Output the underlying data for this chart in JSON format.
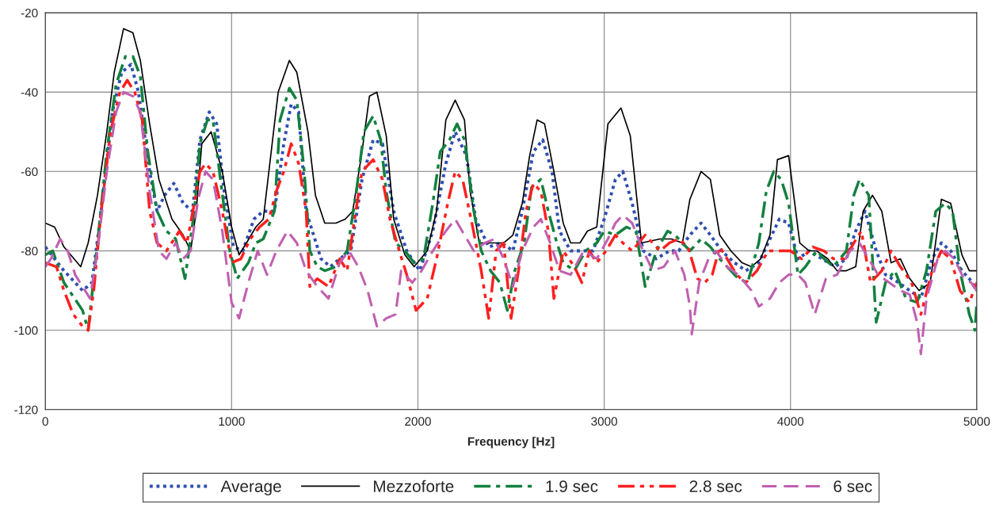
{
  "chart_data": {
    "type": "line",
    "xlabel": "Frequency [Hz]",
    "xlim": [
      0,
      5000
    ],
    "xticks": [
      0,
      1000,
      2000,
      3000,
      4000,
      5000
    ],
    "ylim": [
      -120,
      -20
    ],
    "yticks": [
      -120,
      -100,
      -80,
      -60,
      -40,
      -20
    ],
    "grid": true,
    "legend": "bottom",
    "marker": "none",
    "series": [
      {
        "name": "Average",
        "color": "#2e4eb0",
        "line_style": "dotted",
        "x": [
          0,
          100,
          200,
          250,
          300,
          360,
          410,
          460,
          500,
          560,
          600,
          640,
          690,
          740,
          790,
          830,
          880,
          920,
          960,
          1010,
          1060,
          1120,
          1170,
          1230,
          1280,
          1320,
          1360,
          1400,
          1480,
          1530,
          1580,
          1640,
          1700,
          1760,
          1810,
          1870,
          1940,
          2010,
          2080,
          2150,
          2200,
          2260,
          2310,
          2380,
          2450,
          2510,
          2560,
          2620,
          2670,
          2720,
          2760,
          2820,
          2880,
          2940,
          3000,
          3060,
          3100,
          3150,
          3210,
          3280,
          3350,
          3400,
          3460,
          3520,
          3570,
          3630,
          3700,
          3760,
          3830,
          3880,
          3940,
          3990,
          4040,
          4100,
          4170,
          4240,
          4300,
          4350,
          4400,
          4460,
          4510,
          4580,
          4640,
          4700,
          4760,
          4810,
          4860,
          4920,
          4960,
          5000
        ],
        "values": [
          -79,
          -85,
          -90,
          -88,
          -70,
          -45,
          -35,
          -33,
          -40,
          -60,
          -70,
          -66,
          -63,
          -68,
          -70,
          -52,
          -45,
          -48,
          -65,
          -79,
          -80,
          -72,
          -70,
          -70,
          -53,
          -43,
          -45,
          -70,
          -82,
          -84,
          -82,
          -80,
          -62,
          -52,
          -53,
          -70,
          -80,
          -85,
          -75,
          -58,
          -50,
          -56,
          -72,
          -79,
          -78,
          -80,
          -70,
          -55,
          -52,
          -60,
          -75,
          -80,
          -80,
          -80,
          -72,
          -62,
          -60,
          -68,
          -80,
          -82,
          -80,
          -80,
          -76,
          -73,
          -76,
          -80,
          -83,
          -85,
          -83,
          -78,
          -72,
          -73,
          -82,
          -80,
          -82,
          -84,
          -82,
          -75,
          -70,
          -80,
          -86,
          -88,
          -90,
          -92,
          -82,
          -78,
          -80,
          -85,
          -87,
          -90
        ]
      },
      {
        "name": "Mezzoforte",
        "color": "#000000",
        "line_style": "solid",
        "x": [
          0,
          50,
          100,
          190,
          230,
          280,
          330,
          370,
          420,
          470,
          510,
          560,
          610,
          680,
          740,
          780,
          810,
          840,
          890,
          950,
          1000,
          1040,
          1080,
          1130,
          1170,
          1250,
          1310,
          1350,
          1410,
          1450,
          1500,
          1560,
          1610,
          1650,
          1700,
          1740,
          1780,
          1830,
          1870,
          1930,
          1980,
          2050,
          2100,
          2150,
          2200,
          2250,
          2280,
          2330,
          2400,
          2460,
          2510,
          2560,
          2600,
          2640,
          2680,
          2730,
          2780,
          2820,
          2870,
          2910,
          2960,
          3020,
          3090,
          3140,
          3200,
          3300,
          3360,
          3420,
          3460,
          3520,
          3570,
          3620,
          3680,
          3740,
          3790,
          3840,
          3890,
          3930,
          3990,
          4050,
          4100,
          4140,
          4200,
          4250,
          4300,
          4350,
          4390,
          4440,
          4490,
          4540,
          4590,
          4640,
          4690,
          4750,
          4810,
          4860,
          4920,
          4960,
          5000
        ],
        "values": [
          -73,
          -74,
          -79,
          -84,
          -78,
          -66,
          -50,
          -35,
          -24,
          -25,
          -32,
          -48,
          -62,
          -72,
          -76,
          -80,
          -70,
          -53,
          -50,
          -60,
          -74,
          -81,
          -78,
          -74,
          -72,
          -40,
          -32,
          -35,
          -50,
          -66,
          -73,
          -73,
          -72,
          -70,
          -55,
          -41,
          -40,
          -51,
          -72,
          -81,
          -84,
          -80,
          -70,
          -47,
          -42,
          -47,
          -65,
          -78,
          -78,
          -78,
          -76,
          -68,
          -56,
          -47,
          -48,
          -60,
          -73,
          -78,
          -78,
          -75,
          -74,
          -48,
          -44,
          -51,
          -78,
          -77,
          -77,
          -78,
          -67,
          -60,
          -62,
          -76,
          -80,
          -83,
          -84,
          -82,
          -76,
          -57,
          -56,
          -78,
          -80,
          -80,
          -82,
          -85,
          -85,
          -84,
          -70,
          -66,
          -70,
          -83,
          -82,
          -87,
          -90,
          -88,
          -67,
          -68,
          -81,
          -85,
          -85
        ]
      },
      {
        "name": "1.9 sec",
        "color": "#13803f",
        "line_style": "dashdot",
        "x": [
          0,
          40,
          100,
          200,
          230,
          280,
          330,
          380,
          430,
          470,
          510,
          550,
          600,
          650,
          700,
          750,
          800,
          830,
          870,
          900,
          940,
          990,
          1030,
          1090,
          1130,
          1170,
          1230,
          1260,
          1310,
          1350,
          1390,
          1420,
          1460,
          1500,
          1560,
          1620,
          1670,
          1710,
          1760,
          1800,
          1830,
          1880,
          1930,
          1980,
          2030,
          2080,
          2120,
          2170,
          2210,
          2250,
          2300,
          2340,
          2390,
          2440,
          2480,
          2520,
          2570,
          2610,
          2660,
          2700,
          2740,
          2780,
          2840,
          2900,
          2960,
          3000,
          3060,
          3120,
          3170,
          3220,
          3280,
          3340,
          3380,
          3420,
          3460,
          3520,
          3570,
          3620,
          3680,
          3720,
          3770,
          3830,
          3870,
          3910,
          3950,
          3990,
          4040,
          4080,
          4140,
          4180,
          4230,
          4300,
          4340,
          4370,
          4420,
          4460,
          4510,
          4560,
          4620,
          4680,
          4730,
          4780,
          4830,
          4870,
          4910,
          4960,
          4990,
          5000
        ],
        "values": [
          -81,
          -80,
          -88,
          -95,
          -100,
          -78,
          -55,
          -38,
          -31,
          -31,
          -36,
          -55,
          -70,
          -75,
          -77,
          -87,
          -70,
          -53,
          -47,
          -47,
          -62,
          -80,
          -87,
          -83,
          -78,
          -77,
          -70,
          -47,
          -39,
          -42,
          -60,
          -80,
          -84,
          -85,
          -84,
          -80,
          -65,
          -50,
          -46,
          -52,
          -65,
          -78,
          -80,
          -83,
          -82,
          -68,
          -55,
          -52,
          -48,
          -52,
          -70,
          -80,
          -85,
          -88,
          -95,
          -85,
          -78,
          -64,
          -62,
          -70,
          -77,
          -83,
          -85,
          -80,
          -78,
          -75,
          -76,
          -74,
          -75,
          -89,
          -80,
          -75,
          -76,
          -78,
          -80,
          -77,
          -79,
          -82,
          -85,
          -87,
          -88,
          -78,
          -65,
          -60,
          -62,
          -68,
          -86,
          -84,
          -80,
          -82,
          -84,
          -80,
          -66,
          -62,
          -66,
          -98,
          -88,
          -85,
          -92,
          -93,
          -85,
          -70,
          -68,
          -70,
          -85,
          -96,
          -100,
          -93
        ]
      },
      {
        "name": "2.8 sec",
        "color": "#ff1f1f",
        "line_style": "dashdotdot",
        "x": [
          0,
          60,
          100,
          150,
          200,
          230,
          260,
          300,
          350,
          400,
          440,
          480,
          520,
          560,
          600,
          650,
          720,
          760,
          800,
          830,
          860,
          900,
          950,
          1000,
          1050,
          1100,
          1150,
          1200,
          1240,
          1280,
          1320,
          1360,
          1400,
          1420,
          1460,
          1520,
          1580,
          1620,
          1660,
          1700,
          1760,
          1810,
          1850,
          1900,
          1940,
          1990,
          2050,
          2100,
          2160,
          2200,
          2240,
          2290,
          2340,
          2380,
          2420,
          2460,
          2500,
          2540,
          2580,
          2620,
          2660,
          2700,
          2730,
          2780,
          2840,
          2880,
          2920,
          2960,
          3010,
          3060,
          3100,
          3150,
          3220,
          3300,
          3350,
          3400,
          3450,
          3500,
          3540,
          3580,
          3620,
          3660,
          3710,
          3760,
          3820,
          3880,
          3940,
          4000,
          4060,
          4120,
          4180,
          4230,
          4290,
          4340,
          4380,
          4430,
          4490,
          4540,
          4590,
          4650,
          4700,
          4760,
          4810,
          4860,
          4910,
          4960,
          5000
        ],
        "values": [
          -83,
          -84,
          -90,
          -96,
          -99,
          -100,
          -90,
          -70,
          -50,
          -40,
          -37,
          -40,
          -47,
          -70,
          -78,
          -80,
          -75,
          -78,
          -68,
          -60,
          -58,
          -60,
          -70,
          -83,
          -82,
          -77,
          -74,
          -72,
          -65,
          -60,
          -53,
          -58,
          -70,
          -89,
          -87,
          -89,
          -82,
          -85,
          -72,
          -60,
          -57,
          -62,
          -72,
          -80,
          -86,
          -95,
          -92,
          -82,
          -68,
          -60,
          -62,
          -73,
          -85,
          -97,
          -80,
          -78,
          -97,
          -85,
          -70,
          -63,
          -65,
          -75,
          -92,
          -80,
          -84,
          -88,
          -80,
          -83,
          -80,
          -76,
          -78,
          -80,
          -76,
          -80,
          -78,
          -77,
          -79,
          -87,
          -88,
          -86,
          -79,
          -82,
          -86,
          -88,
          -85,
          -80,
          -80,
          -80,
          -82,
          -79,
          -80,
          -82,
          -82,
          -78,
          -75,
          -88,
          -85,
          -80,
          -84,
          -88,
          -96,
          -85,
          -80,
          -82,
          -90,
          -93,
          -88
        ]
      },
      {
        "name": "6 sec",
        "color": "#c060b0",
        "line_style": "dashed",
        "x": [
          0,
          30,
          80,
          120,
          160,
          200,
          240,
          280,
          330,
          380,
          420,
          470,
          510,
          560,
          610,
          650,
          700,
          740,
          780,
          820,
          860,
          900,
          950,
          1000,
          1040,
          1090,
          1140,
          1190,
          1240,
          1300,
          1350,
          1400,
          1460,
          1520,
          1580,
          1630,
          1680,
          1730,
          1780,
          1830,
          1880,
          1910,
          1970,
          2020,
          2080,
          2150,
          2200,
          2250,
          2300,
          2360,
          2410,
          2460,
          2510,
          2560,
          2620,
          2660,
          2710,
          2760,
          2820,
          2890,
          2960,
          3020,
          3060,
          3100,
          3150,
          3200,
          3260,
          3320,
          3380,
          3430,
          3460,
          3470,
          3510,
          3560,
          3600,
          3660,
          3720,
          3790,
          3830,
          3890,
          3940,
          3990,
          4040,
          4080,
          4130,
          4190,
          4250,
          4320,
          4370,
          4420,
          4470,
          4530,
          4590,
          4640,
          4680,
          4700,
          4730,
          4790,
          4830,
          4880,
          4930,
          4970,
          5000
        ],
        "values": [
          -84,
          -82,
          -77,
          -80,
          -86,
          -89,
          -92,
          -80,
          -60,
          -45,
          -40,
          -41,
          -45,
          -65,
          -80,
          -82,
          -78,
          -82,
          -80,
          -67,
          -60,
          -62,
          -75,
          -93,
          -97,
          -88,
          -80,
          -86,
          -80,
          -75,
          -78,
          -85,
          -89,
          -92,
          -83,
          -80,
          -84,
          -90,
          -99,
          -97,
          -96,
          -85,
          -88,
          -85,
          -80,
          -75,
          -72,
          -76,
          -80,
          -78,
          -77,
          -82,
          -89,
          -80,
          -74,
          -72,
          -78,
          -85,
          -86,
          -80,
          -82,
          -77,
          -73,
          -71,
          -73,
          -79,
          -85,
          -84,
          -80,
          -86,
          -94,
          -101,
          -88,
          -82,
          -80,
          -84,
          -86,
          -90,
          -94,
          -92,
          -88,
          -86,
          -86,
          -88,
          -96,
          -87,
          -86,
          -80,
          -78,
          -82,
          -86,
          -88,
          -90,
          -91,
          -98,
          -106,
          -92,
          -82,
          -80,
          -82,
          -87,
          -88,
          -90
        ]
      }
    ]
  }
}
